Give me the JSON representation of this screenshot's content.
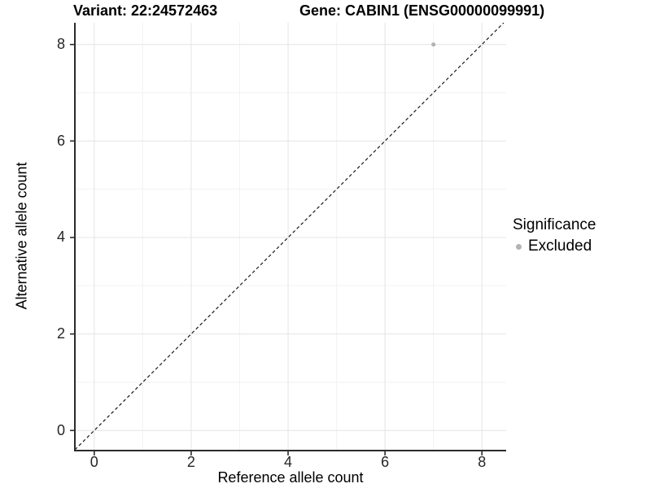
{
  "header": {
    "variant_title": "Variant: 22:24572463",
    "gene_title": "Gene: CABIN1 (ENSG00000099991)"
  },
  "chart_data": {
    "type": "scatter",
    "titles": [
      "Variant: 22:24572463",
      "Gene: CABIN1 (ENSG00000099991)"
    ],
    "xlabel": "Reference allele count",
    "ylabel": "Alternative allele count",
    "xlim": [
      -0.4,
      8.5
    ],
    "ylim": [
      -0.4,
      8.45
    ],
    "x_major_ticks": [
      0,
      2,
      4,
      6,
      8
    ],
    "y_major_ticks": [
      0,
      2,
      4,
      6,
      8
    ],
    "x_minor_gridlines": [
      1,
      3,
      5,
      7
    ],
    "y_minor_gridlines": [
      1,
      3,
      5,
      7
    ],
    "grid": "on",
    "series": [
      {
        "name": "Excluded",
        "color": "#b3b3b3",
        "points": [
          {
            "x": 7,
            "y": 8
          }
        ]
      }
    ],
    "reference_line": {
      "kind": "identity",
      "equation": "y = x",
      "style": "dashed",
      "color": "#1a1a1a"
    },
    "legend": {
      "title": "Significance",
      "position": "right",
      "entries": [
        {
          "label": "Excluded",
          "color": "#b3b3b3"
        }
      ]
    }
  },
  "colors": {
    "background": "#ffffff",
    "grid_major": "#e4e4e4",
    "grid_minor": "#f2f2f2",
    "axis_line": "#2b2b2b",
    "tick_label": "#262626"
  }
}
